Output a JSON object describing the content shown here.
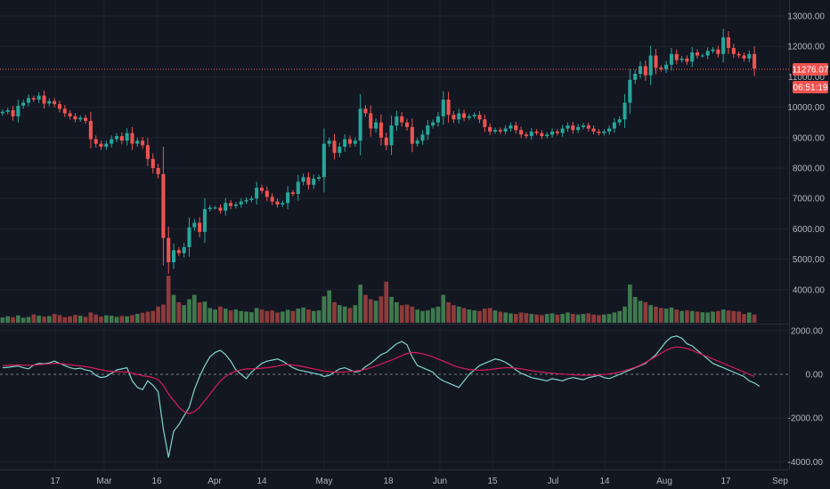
{
  "colors": {
    "background": "#131722",
    "grid": "#1e222d",
    "up": "#26a69a",
    "down": "#ef5350",
    "up_volume": "#3f7a4e",
    "down_volume": "#8e3b3b",
    "oscillator_line": "#7fd6cf",
    "signal_line": "#d81b60",
    "last_price": "#ef5350",
    "axis_text": "#b2b5be"
  },
  "price_axis": {
    "labels": [
      "13000.00",
      "12000.00",
      "11000.00",
      "10000.00",
      "9000.00",
      "8000.00",
      "7000.00",
      "6000.00",
      "5000.00",
      "4000.00"
    ],
    "last_price": "11276.07",
    "countdown": "06:51:19"
  },
  "oscillator_axis": {
    "labels": [
      "2000.00",
      "0.00",
      "-2000.00",
      "-4000.00"
    ]
  },
  "time_axis": {
    "labels": [
      "17",
      "Mar",
      "16",
      "Apr",
      "14",
      "May",
      "18",
      "Jun",
      "15",
      "Jul",
      "14",
      "Aug",
      "17",
      "Sep"
    ]
  },
  "chart_data": [
    {
      "type": "candlestick",
      "title": "",
      "x_range": [
        "Feb 7",
        "Aug 27"
      ],
      "ylim": [
        3000,
        13000
      ],
      "last_price": 11276.07,
      "close": [
        9850,
        9900,
        9700,
        10050,
        10150,
        10300,
        10250,
        10380,
        10120,
        10200,
        10100,
        9950,
        9800,
        9700,
        9600,
        9650,
        9550,
        8950,
        8800,
        8700,
        8800,
        8950,
        9050,
        8900,
        9150,
        8800,
        8900,
        8750,
        8300,
        8000,
        7800,
        5700,
        4900,
        5300,
        5200,
        5400,
        6050,
        6200,
        5900,
        6650,
        6700,
        6700,
        6600,
        6850,
        6750,
        6800,
        6900,
        6950,
        7000,
        7350,
        7250,
        7050,
        6900,
        6800,
        6850,
        7200,
        7150,
        7550,
        7700,
        7450,
        7650,
        7700,
        8800,
        8900,
        8500,
        8700,
        8950,
        8800,
        8900,
        9950,
        9800,
        9300,
        9500,
        9000,
        8750,
        9400,
        9700,
        9500,
        9350,
        8800,
        8900,
        9100,
        9400,
        9500,
        9700,
        10250,
        9750,
        9600,
        9800,
        9650,
        9700,
        9750,
        9600,
        9350,
        9200,
        9250,
        9200,
        9300,
        9400,
        9250,
        9100,
        9050,
        9200,
        9150,
        9050,
        9100,
        9200,
        9150,
        9300,
        9400,
        9250,
        9350,
        9400,
        9300,
        9200,
        9150,
        9200,
        9300,
        9500,
        9600,
        10150,
        10900,
        11100,
        11350,
        11050,
        11700,
        11300,
        11250,
        11400,
        11750,
        11550,
        11600,
        11500,
        11800,
        11700,
        11700,
        11850,
        11900,
        11750,
        12300,
        11950,
        11750,
        11700,
        11600,
        11750,
        11276
      ]
    },
    {
      "type": "bar",
      "title": "",
      "series": [
        {
          "values": [
            18,
            22,
            19,
            25,
            17,
            20,
            28,
            24,
            21,
            23,
            30,
            26,
            19,
            22,
            27,
            24,
            20,
            35,
            28,
            21,
            25,
            24,
            20,
            23,
            22,
            26,
            30,
            34,
            38,
            40,
            55,
            62,
            160,
            95,
            70,
            60,
            80,
            95,
            70,
            72,
            50,
            45,
            55,
            48,
            42,
            45,
            40,
            38,
            36,
            50,
            45,
            40,
            42,
            35,
            38,
            44,
            40,
            48,
            52,
            45,
            40,
            42,
            90,
            110,
            70,
            60,
            55,
            50,
            60,
            130,
            95,
            80,
            75,
            90,
            140,
            88,
            70,
            60,
            62,
            55,
            45,
            40,
            42,
            50,
            55,
            95,
            70,
            60,
            55,
            50,
            45,
            42,
            40,
            48,
            50,
            42,
            38,
            35,
            32,
            30,
            35,
            33,
            30,
            28,
            26,
            30,
            32,
            28,
            30,
            35,
            30,
            28,
            30,
            32,
            28,
            26,
            28,
            30,
            35,
            40,
            55,
            130,
            88,
            75,
            70,
            60,
            55,
            50,
            48,
            52,
            45,
            40,
            42,
            40,
            38,
            36,
            35,
            38,
            40,
            45,
            42,
            40,
            38,
            30,
            35,
            28
          ]
        }
      ]
    },
    {
      "type": "line",
      "title": "",
      "ylim": [
        -4000,
        2000
      ],
      "series": [
        {
          "values": [
            300,
            320,
            350,
            380,
            300,
            250,
            420,
            500,
            480,
            520,
            600,
            500,
            400,
            300,
            250,
            280,
            200,
            150,
            -50,
            -150,
            -100,
            50,
            200,
            250,
            300,
            -300,
            -600,
            -700,
            -300,
            -500,
            -800,
            -2500,
            -3800,
            -2600,
            -2300,
            -1900,
            -1500,
            -700,
            -100,
            400,
            800,
            1000,
            1100,
            900,
            600,
            200,
            0,
            -200,
            100,
            300,
            500,
            600,
            650,
            700,
            600,
            450,
            300,
            200,
            150,
            100,
            50,
            0,
            -100,
            -50,
            100,
            250,
            300,
            200,
            100,
            150,
            350,
            500,
            700,
            900,
            1000,
            1200,
            1400,
            1500,
            1350,
            800,
            400,
            300,
            200,
            100,
            -150,
            -300,
            -400,
            -500,
            -600,
            -300,
            0,
            200,
            400,
            500,
            600,
            700,
            650,
            550,
            400,
            200,
            50,
            -50,
            -150,
            -200,
            -250,
            -300,
            -200,
            -250,
            -300,
            -200,
            -150,
            -200,
            -250,
            -150,
            -100,
            -50,
            -150,
            -200,
            -100,
            0,
            100,
            200,
            300,
            400,
            500,
            700,
            900,
            1200,
            1500,
            1700,
            1750,
            1650,
            1400,
            1300,
            1100,
            900,
            700,
            500,
            400,
            300,
            200,
            100,
            0,
            -100,
            -300,
            -400,
            -550
          ]
        },
        {
          "values": [
            400,
            410,
            420,
            430,
            420,
            410,
            420,
            440,
            460,
            480,
            500,
            490,
            470,
            440,
            410,
            380,
            350,
            310,
            260,
            210,
            160,
            140,
            120,
            110,
            100,
            60,
            0,
            -60,
            -100,
            -150,
            -250,
            -500,
            -900,
            -1200,
            -1500,
            -1700,
            -1800,
            -1700,
            -1500,
            -1200,
            -900,
            -600,
            -300,
            -100,
            50,
            150,
            200,
            250,
            250,
            260,
            280,
            300,
            330,
            380,
            430,
            450,
            420,
            390,
            350,
            300,
            250,
            200,
            150,
            120,
            100,
            100,
            110,
            130,
            150,
            180,
            230,
            300,
            380,
            470,
            560,
            650,
            750,
            850,
            950,
            1000,
            980,
            940,
            880,
            800,
            700,
            600,
            500,
            400,
            320,
            260,
            220,
            200,
            190,
            200,
            220,
            250,
            280,
            300,
            300,
            280,
            250,
            210,
            170,
            130,
            100,
            70,
            50,
            30,
            10,
            0,
            -20,
            -30,
            -40,
            -40,
            -40,
            -30,
            -10,
            20,
            60,
            110,
            170,
            240,
            320,
            420,
            540,
            680,
            820,
            960,
            1100,
            1200,
            1250,
            1230,
            1180,
            1100,
            1000,
            900,
            800,
            700,
            600,
            500,
            400,
            300,
            200,
            100,
            0,
            -100
          ]
        }
      ]
    }
  ]
}
